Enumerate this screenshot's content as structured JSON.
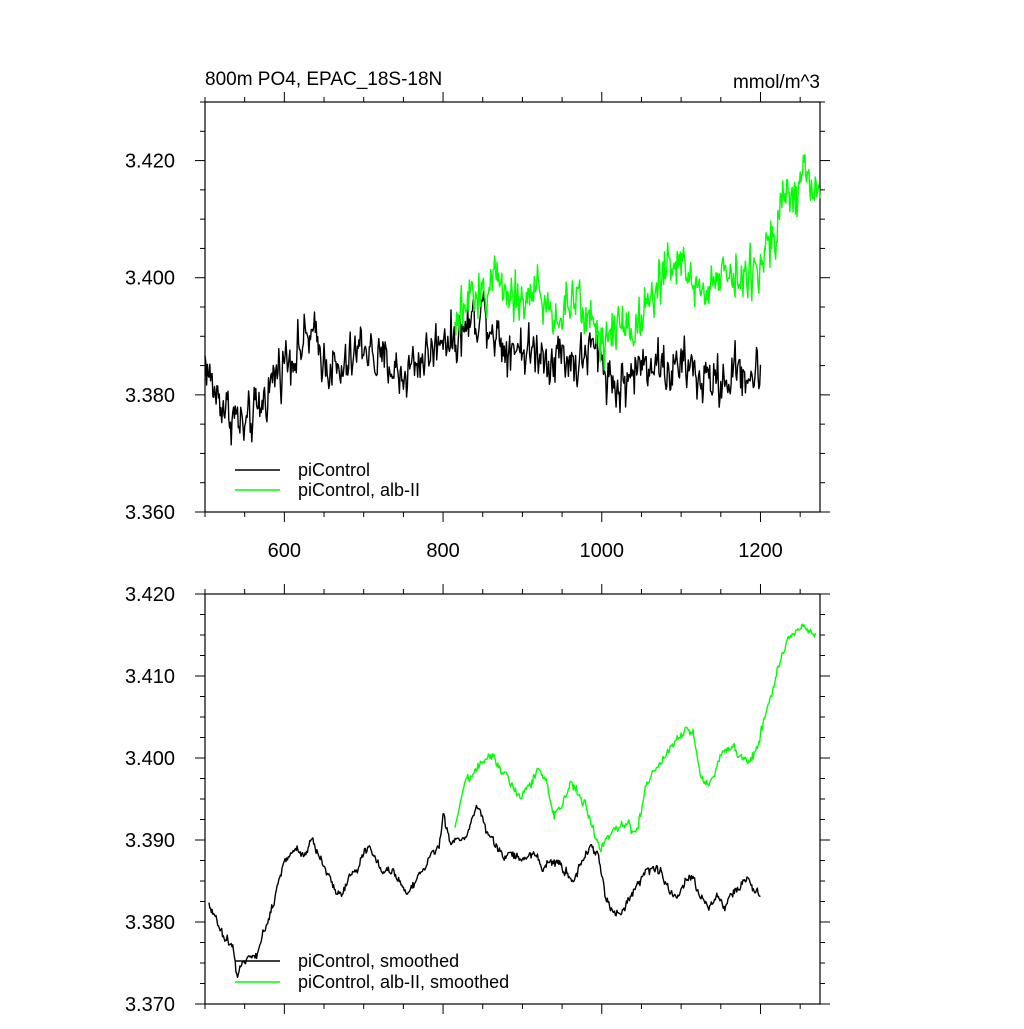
{
  "chart_data": [
    {
      "type": "line",
      "title": "800m PO4, EPAC_18S-18N",
      "units": "mmol/m^3",
      "xlim": [
        500,
        1275
      ],
      "ylim": [
        3.36,
        3.43
      ],
      "x_ticks": [
        600,
        800,
        1000,
        1200
      ],
      "y_ticks": [
        3.36,
        3.38,
        3.4,
        3.42
      ],
      "y_tick_labels": [
        "3.360",
        "3.380",
        "3.400",
        "3.420"
      ],
      "x_tick_labels": [
        "600",
        "800",
        "1000",
        "1200"
      ],
      "legend_position": "bottom-left",
      "series": [
        {
          "name": "piControl",
          "color": "#000000",
          "x_start": 500,
          "x_end": 1200,
          "anchors": [
            [
              500,
              3.386
            ],
            [
              510,
              3.381
            ],
            [
              520,
              3.379
            ],
            [
              530,
              3.377
            ],
            [
              540,
              3.376
            ],
            [
              550,
              3.374
            ],
            [
              560,
              3.376
            ],
            [
              570,
              3.378
            ],
            [
              580,
              3.381
            ],
            [
              590,
              3.384
            ],
            [
              600,
              3.386
            ],
            [
              610,
              3.387
            ],
            [
              620,
              3.388
            ],
            [
              630,
              3.39
            ],
            [
              640,
              3.389
            ],
            [
              650,
              3.386
            ],
            [
              660,
              3.385
            ],
            [
              670,
              3.383
            ],
            [
              680,
              3.385
            ],
            [
              690,
              3.387
            ],
            [
              700,
              3.389
            ],
            [
              710,
              3.387
            ],
            [
              720,
              3.385
            ],
            [
              730,
              3.386
            ],
            [
              740,
              3.384
            ],
            [
              750,
              3.383
            ],
            [
              760,
              3.385
            ],
            [
              770,
              3.386
            ],
            [
              780,
              3.387
            ],
            [
              790,
              3.388
            ],
            [
              800,
              3.391
            ],
            [
              810,
              3.389
            ],
            [
              820,
              3.39
            ],
            [
              830,
              3.392
            ],
            [
              840,
              3.393
            ],
            [
              850,
              3.395
            ],
            [
              860,
              3.392
            ],
            [
              870,
              3.39
            ],
            [
              880,
              3.388
            ],
            [
              890,
              3.389
            ],
            [
              900,
              3.388
            ],
            [
              910,
              3.387
            ],
            [
              920,
              3.388
            ],
            [
              930,
              3.386
            ],
            [
              940,
              3.387
            ],
            [
              950,
              3.387
            ],
            [
              960,
              3.386
            ],
            [
              970,
              3.385
            ],
            [
              980,
              3.387
            ],
            [
              990,
              3.388
            ],
            [
              1000,
              3.386
            ],
            [
              1010,
              3.383
            ],
            [
              1020,
              3.381
            ],
            [
              1030,
              3.382
            ],
            [
              1040,
              3.384
            ],
            [
              1050,
              3.385
            ],
            [
              1060,
              3.386
            ],
            [
              1070,
              3.386
            ],
            [
              1080,
              3.384
            ],
            [
              1090,
              3.384
            ],
            [
              1100,
              3.385
            ],
            [
              1110,
              3.385
            ],
            [
              1120,
              3.383
            ],
            [
              1130,
              3.382
            ],
            [
              1140,
              3.383
            ],
            [
              1150,
              3.382
            ],
            [
              1160,
              3.383
            ],
            [
              1170,
              3.384
            ],
            [
              1180,
              3.384
            ],
            [
              1190,
              3.383
            ],
            [
              1200,
              3.384
            ]
          ],
          "noise": 0.0045
        },
        {
          "name": "piControl, alb-II",
          "color": "#00ff00",
          "x_start": 815,
          "x_end": 1275,
          "anchors": [
            [
              815,
              3.391
            ],
            [
              830,
              3.395
            ],
            [
              840,
              3.397
            ],
            [
              860,
              3.399
            ],
            [
              870,
              3.4
            ],
            [
              880,
              3.399
            ],
            [
              890,
              3.397
            ],
            [
              900,
              3.396
            ],
            [
              910,
              3.397
            ],
            [
              920,
              3.398
            ],
            [
              930,
              3.395
            ],
            [
              940,
              3.393
            ],
            [
              950,
              3.394
            ],
            [
              960,
              3.396
            ],
            [
              970,
              3.395
            ],
            [
              980,
              3.394
            ],
            [
              990,
              3.392
            ],
            [
              1000,
              3.39
            ],
            [
              1010,
              3.391
            ],
            [
              1020,
              3.392
            ],
            [
              1030,
              3.393
            ],
            [
              1040,
              3.391
            ],
            [
              1050,
              3.394
            ],
            [
              1060,
              3.397
            ],
            [
              1070,
              3.4
            ],
            [
              1080,
              3.401
            ],
            [
              1090,
              3.402
            ],
            [
              1100,
              3.402
            ],
            [
              1110,
              3.401
            ],
            [
              1120,
              3.398
            ],
            [
              1130,
              3.397
            ],
            [
              1140,
              3.399
            ],
            [
              1150,
              3.401
            ],
            [
              1160,
              3.402
            ],
            [
              1170,
              3.401
            ],
            [
              1180,
              3.399
            ],
            [
              1190,
              3.4
            ],
            [
              1200,
              3.403
            ],
            [
              1210,
              3.407
            ],
            [
              1220,
              3.41
            ],
            [
              1230,
              3.413
            ],
            [
              1240,
              3.415
            ],
            [
              1250,
              3.415
            ],
            [
              1260,
              3.416
            ],
            [
              1275,
              3.415
            ]
          ],
          "noise": 0.0045
        }
      ]
    },
    {
      "type": "line",
      "title": "",
      "xlim": [
        500,
        1275
      ],
      "ylim": [
        3.37,
        3.42
      ],
      "x_ticks": [
        600,
        800,
        1000,
        1200
      ],
      "y_ticks": [
        3.37,
        3.38,
        3.39,
        3.4,
        3.41,
        3.42
      ],
      "y_tick_labels": [
        "3.370",
        "3.380",
        "3.390",
        "3.400",
        "3.410",
        "3.420"
      ],
      "legend_position": "bottom-left",
      "series": [
        {
          "name": "piControl, smoothed",
          "color": "#000000",
          "x_start": 505,
          "x_end": 1200,
          "anchors": [
            [
              505,
              3.3825
            ],
            [
              515,
              3.38
            ],
            [
              525,
              3.378
            ],
            [
              535,
              3.377
            ],
            [
              540,
              3.3735
            ],
            [
              548,
              3.375
            ],
            [
              555,
              3.376
            ],
            [
              565,
              3.3755
            ],
            [
              575,
              3.379
            ],
            [
              585,
              3.382
            ],
            [
              595,
              3.386
            ],
            [
              605,
              3.388
            ],
            [
              615,
              3.389
            ],
            [
              625,
              3.388
            ],
            [
              635,
              3.3905
            ],
            [
              645,
              3.3875
            ],
            [
              655,
              3.386
            ],
            [
              665,
              3.3835
            ],
            [
              675,
              3.384
            ],
            [
              685,
              3.386
            ],
            [
              695,
              3.387
            ],
            [
              705,
              3.3895
            ],
            [
              715,
              3.3875
            ],
            [
              725,
              3.386
            ],
            [
              735,
              3.3865
            ],
            [
              745,
              3.385
            ],
            [
              755,
              3.3835
            ],
            [
              765,
              3.385
            ],
            [
              775,
              3.3865
            ],
            [
              785,
              3.388
            ],
            [
              795,
              3.389
            ],
            [
              800,
              3.393
            ],
            [
              810,
              3.3895
            ],
            [
              820,
              3.39
            ],
            [
              830,
              3.3905
            ],
            [
              838,
              3.393
            ],
            [
              845,
              3.3945
            ],
            [
              855,
              3.391
            ],
            [
              865,
              3.3895
            ],
            [
              875,
              3.388
            ],
            [
              885,
              3.3885
            ],
            [
              895,
              3.3875
            ],
            [
              905,
              3.388
            ],
            [
              915,
              3.3885
            ],
            [
              925,
              3.3865
            ],
            [
              935,
              3.3875
            ],
            [
              945,
              3.387
            ],
            [
              955,
              3.386
            ],
            [
              965,
              3.385
            ],
            [
              975,
              3.3875
            ],
            [
              985,
              3.389
            ],
            [
              995,
              3.3885
            ],
            [
              1005,
              3.383
            ],
            [
              1015,
              3.381
            ],
            [
              1025,
              3.3815
            ],
            [
              1035,
              3.383
            ],
            [
              1045,
              3.3845
            ],
            [
              1055,
              3.386
            ],
            [
              1065,
              3.3865
            ],
            [
              1075,
              3.386
            ],
            [
              1085,
              3.384
            ],
            [
              1095,
              3.383
            ],
            [
              1105,
              3.385
            ],
            [
              1115,
              3.3855
            ],
            [
              1125,
              3.383
            ],
            [
              1135,
              3.3815
            ],
            [
              1145,
              3.3835
            ],
            [
              1155,
              3.382
            ],
            [
              1165,
              3.3835
            ],
            [
              1175,
              3.3845
            ],
            [
              1185,
              3.3855
            ],
            [
              1190,
              3.384
            ],
            [
              1200,
              3.383
            ]
          ],
          "noise": 0.0006
        },
        {
          "name": "piControl, alb-II, smoothed",
          "color": "#00ff00",
          "x_start": 815,
          "x_end": 1270,
          "anchors": [
            [
              815,
              3.391
            ],
            [
              825,
              3.396
            ],
            [
              835,
              3.398
            ],
            [
              845,
              3.399
            ],
            [
              855,
              3.4
            ],
            [
              862,
              3.4005
            ],
            [
              870,
              3.399
            ],
            [
              880,
              3.398
            ],
            [
              890,
              3.396
            ],
            [
              900,
              3.3955
            ],
            [
              910,
              3.397
            ],
            [
              920,
              3.3985
            ],
            [
              930,
              3.397
            ],
            [
              940,
              3.393
            ],
            [
              950,
              3.394
            ],
            [
              960,
              3.397
            ],
            [
              970,
              3.396
            ],
            [
              980,
              3.394
            ],
            [
              990,
              3.391
            ],
            [
              998,
              3.389
            ],
            [
              1005,
              3.39
            ],
            [
              1015,
              3.391
            ],
            [
              1025,
              3.392
            ],
            [
              1035,
              3.3915
            ],
            [
              1045,
              3.391
            ],
            [
              1055,
              3.3965
            ],
            [
              1065,
              3.3985
            ],
            [
              1075,
              3.3995
            ],
            [
              1085,
              3.401
            ],
            [
              1095,
              3.4025
            ],
            [
              1105,
              3.4035
            ],
            [
              1115,
              3.403
            ],
            [
              1125,
              3.3975
            ],
            [
              1135,
              3.3965
            ],
            [
              1145,
              3.399
            ],
            [
              1155,
              3.401
            ],
            [
              1165,
              3.4015
            ],
            [
              1175,
              3.4
            ],
            [
              1185,
              3.3995
            ],
            [
              1195,
              3.401
            ],
            [
              1205,
              3.405
            ],
            [
              1215,
              3.408
            ],
            [
              1225,
              3.412
            ],
            [
              1235,
              3.4145
            ],
            [
              1245,
              3.4155
            ],
            [
              1255,
              3.416
            ],
            [
              1262,
              3.4155
            ],
            [
              1270,
              3.415
            ]
          ],
          "noise": 0.0006
        }
      ]
    }
  ]
}
